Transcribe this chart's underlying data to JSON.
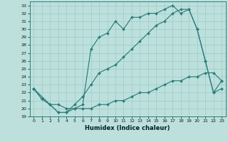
{
  "xlabel": "Humidex (Indice chaleur)",
  "bg_color": "#bde0dc",
  "grid_color": "#9ecfcb",
  "line_color": "#2d7d7d",
  "xlim": [
    -0.5,
    23.5
  ],
  "ylim": [
    19,
    33.5
  ],
  "yticks": [
    19,
    20,
    21,
    22,
    23,
    24,
    25,
    26,
    27,
    28,
    29,
    30,
    31,
    32,
    33
  ],
  "xticks": [
    0,
    1,
    2,
    3,
    4,
    5,
    6,
    7,
    8,
    9,
    10,
    11,
    12,
    13,
    14,
    15,
    16,
    17,
    18,
    19,
    20,
    21,
    22,
    23
  ],
  "line1_x": [
    0,
    1,
    2,
    3,
    4,
    5,
    6,
    7,
    8,
    9,
    10,
    11,
    12,
    13,
    14,
    15,
    16,
    17,
    18,
    19,
    20,
    21,
    22,
    23
  ],
  "line1_y": [
    22.5,
    21.2,
    20.5,
    20.5,
    20.0,
    20.0,
    20.0,
    20.0,
    20.5,
    20.5,
    21.0,
    21.0,
    21.5,
    22.0,
    22.0,
    22.5,
    23.0,
    23.5,
    23.5,
    24.0,
    24.0,
    24.5,
    24.5,
    23.5
  ],
  "line2_x": [
    0,
    1,
    2,
    3,
    4,
    5,
    6,
    7,
    8,
    9,
    10,
    11,
    12,
    13,
    14,
    15,
    16,
    17,
    18,
    19,
    20,
    21,
    22,
    23
  ],
  "line2_y": [
    22.5,
    21.2,
    20.5,
    19.5,
    19.5,
    20.0,
    20.5,
    27.5,
    29.0,
    29.5,
    31.0,
    30.0,
    31.5,
    31.5,
    32.0,
    32.0,
    32.5,
    33.0,
    32.0,
    32.5,
    30.0,
    26.0,
    22.0,
    22.5
  ],
  "line3_x": [
    0,
    2,
    3,
    4,
    5,
    6,
    7,
    8,
    9,
    10,
    11,
    12,
    13,
    14,
    15,
    16,
    17,
    18,
    19,
    20,
    21,
    22,
    23
  ],
  "line3_y": [
    22.5,
    20.5,
    19.5,
    19.5,
    20.5,
    21.5,
    23.0,
    24.5,
    25.0,
    25.5,
    26.5,
    27.5,
    28.5,
    29.5,
    30.5,
    31.0,
    32.0,
    32.5,
    32.5,
    30.0,
    26.0,
    22.0,
    23.5
  ]
}
